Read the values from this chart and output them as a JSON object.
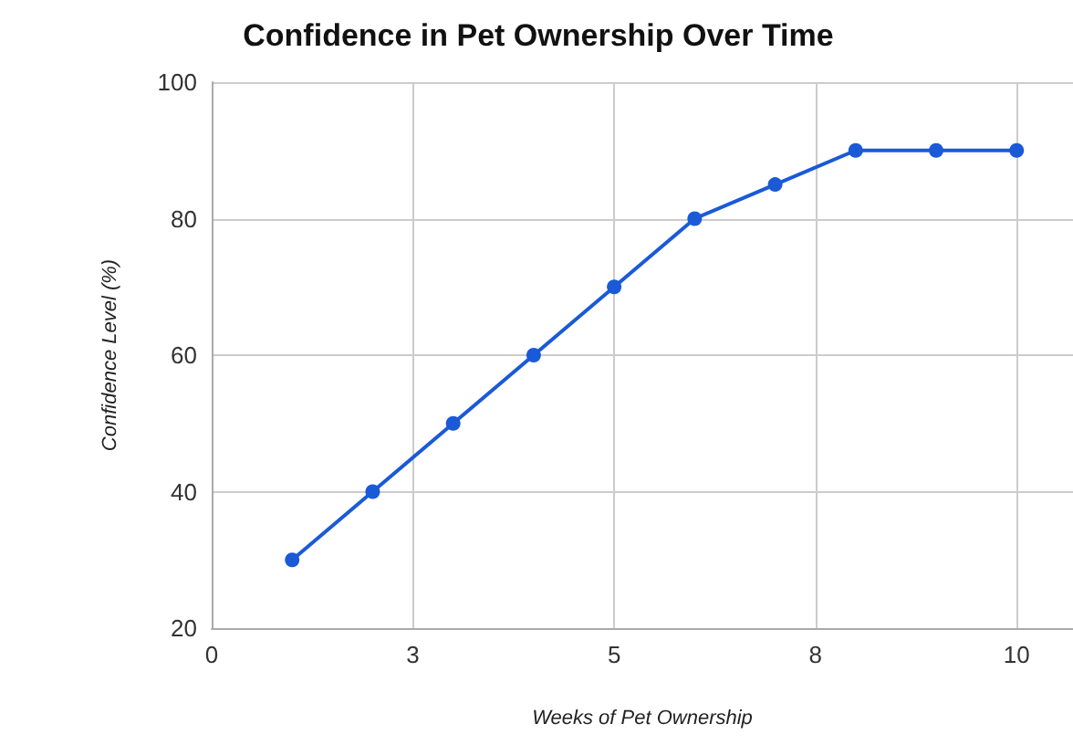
{
  "chart_data": {
    "type": "line",
    "title": "Confidence in Pet Ownership Over Time",
    "xlabel": "Weeks of Pet Ownership",
    "ylabel": "Confidence Level (%)",
    "x": [
      1,
      2,
      3,
      4,
      5,
      6,
      7,
      8,
      9,
      10
    ],
    "series": [
      {
        "color": "#1a5ad7",
        "values": [
          30,
          40,
          50,
          60,
          70,
          80,
          85,
          90,
          90,
          90
        ]
      }
    ],
    "xlim": [
      0,
      10.7
    ],
    "xticks": [
      0,
      {
        "value": 2.5,
        "label": "3"
      },
      5,
      {
        "value": 7.5,
        "label": "8"
      },
      10
    ],
    "ylim": [
      20,
      100
    ],
    "yticks": [
      20,
      40,
      60,
      80,
      100
    ],
    "grid": true,
    "marker": "circle",
    "line_style": "solid"
  }
}
